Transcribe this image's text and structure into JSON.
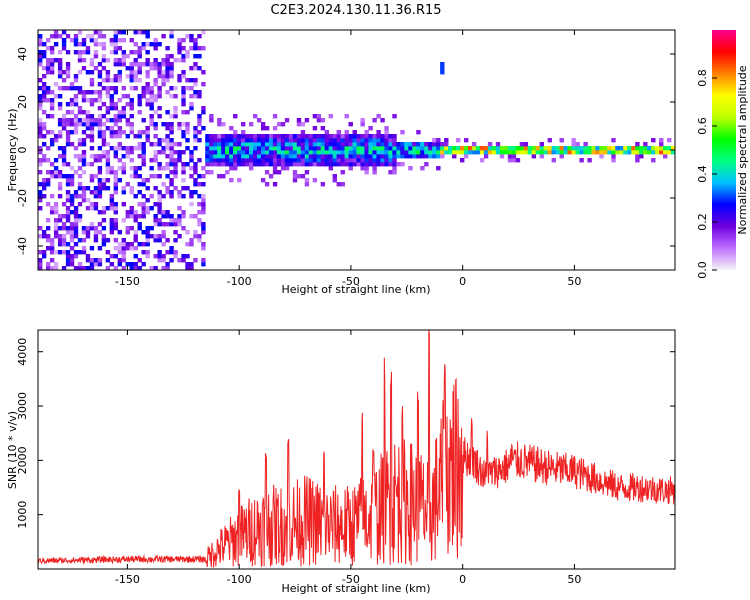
{
  "title": "C2E3.2024.130.11.36.R15",
  "colors": {
    "snr_line": "#ee2222",
    "colormap": [
      "#f4f4f4",
      "#c070ff",
      "#7000e0",
      "#0000ff",
      "#00c0ff",
      "#00ff80",
      "#00ff00",
      "#c0ff00",
      "#ffff00",
      "#ff8000",
      "#ff0000",
      "#ff0090"
    ]
  },
  "chart_data": [
    {
      "type": "heatmap",
      "name": "spectrogram",
      "xlabel": "Height of straight line (km)",
      "ylabel": "Frequency (Hz)",
      "xlim": [
        -190,
        95
      ],
      "ylim": [
        -50,
        50
      ],
      "x_ticks": [
        -150,
        -100,
        -50,
        0,
        50
      ],
      "y_ticks": [
        -40,
        -20,
        0,
        20,
        40
      ],
      "colorbar": {
        "label": "Normalized spectral amplitude",
        "range": [
          0,
          1
        ],
        "ticks": [
          0.0,
          0.2,
          0.4,
          0.6,
          0.8
        ],
        "tick_labels": [
          "0.0",
          "0.2",
          "0.4",
          "0.6",
          "0.8"
        ]
      },
      "features": {
        "noise_region_x": [
          -190,
          -115
        ],
        "noise_level": 0.15,
        "band_center_freq": 0,
        "band_segments": [
          {
            "x": [
              -115,
              -30
            ],
            "half_width_hz": 7,
            "peak": 0.45
          },
          {
            "x": [
              -30,
              -10
            ],
            "half_width_hz": 4,
            "peak": 0.5
          },
          {
            "x": [
              -10,
              95
            ],
            "half_width_hz": 2.5,
            "peak": 0.9
          }
        ],
        "isolated_spot": {
          "x": -9,
          "freq": 34,
          "level": 0.3
        }
      }
    },
    {
      "type": "line",
      "name": "snr",
      "xlabel": "Height of straight line (km)",
      "ylabel": "SNR (10 * v/v)",
      "xlim": [
        -190,
        95
      ],
      "ylim": [
        0,
        4400
      ],
      "x_ticks": [
        -150,
        -100,
        -50,
        0,
        50
      ],
      "y_ticks": [
        1000,
        2000,
        3000,
        4000
      ],
      "series": [
        {
          "x": [
            -190,
            -150,
            -115,
            -110,
            -100,
            -90,
            -80,
            -70,
            -60,
            -50,
            -40,
            -30,
            -20,
            -15,
            -10,
            -5,
            0,
            5,
            10,
            15,
            20,
            25,
            30,
            40,
            50,
            60,
            70,
            80,
            90,
            95
          ],
          "y": [
            150,
            180,
            180,
            350,
            600,
            800,
            800,
            900,
            800,
            800,
            1000,
            1300,
            1200,
            1000,
            1500,
            1900,
            2100,
            2000,
            1700,
            1800,
            1900,
            2000,
            1950,
            1850,
            1800,
            1650,
            1500,
            1500,
            1450,
            1450
          ],
          "spikes": [
            {
              "x": -100,
              "y": 1500
            },
            {
              "x": -88,
              "y": 2200
            },
            {
              "x": -78,
              "y": 2500
            },
            {
              "x": -62,
              "y": 2200
            },
            {
              "x": -45,
              "y": 2900
            },
            {
              "x": -40,
              "y": 2300
            },
            {
              "x": -35,
              "y": 3900
            },
            {
              "x": -32,
              "y": 3700
            },
            {
              "x": -27,
              "y": 3000
            },
            {
              "x": -20,
              "y": 3300
            },
            {
              "x": -15,
              "y": 4400
            },
            {
              "x": -8,
              "y": 3800
            },
            {
              "x": -3,
              "y": 3500
            },
            {
              "x": 4,
              "y": 2800
            },
            {
              "x": 11,
              "y": 2650
            },
            {
              "x": 22,
              "y": 2400
            }
          ]
        }
      ]
    }
  ]
}
